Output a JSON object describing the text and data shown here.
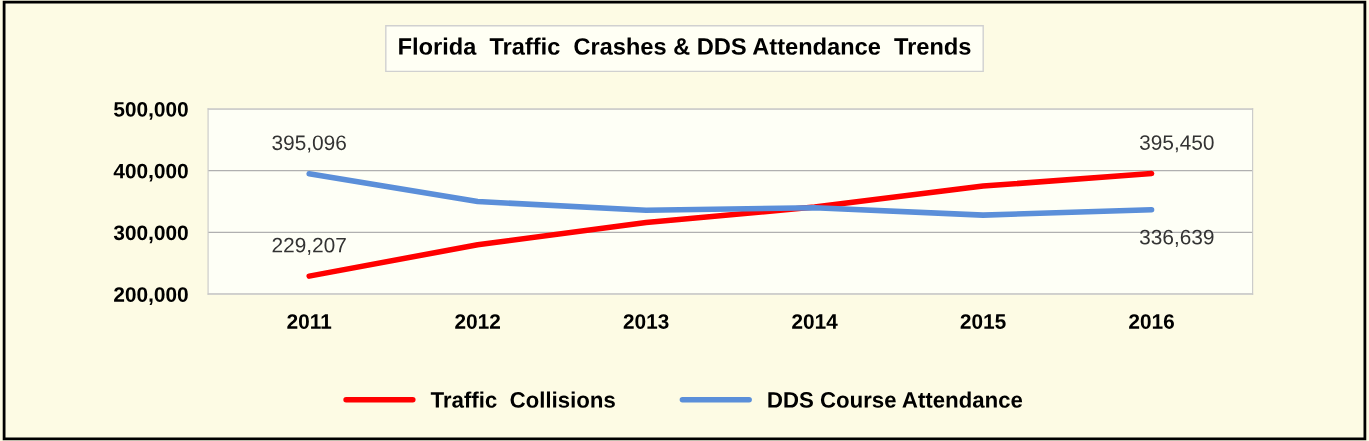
{
  "chart_data": {
    "type": "line",
    "title": "Florida  Traffic  Crashes & DDS Attendance  Trends",
    "categories": [
      "2011",
      "2012",
      "2013",
      "2014",
      "2015",
      "2016"
    ],
    "series": [
      {
        "name": "Traffic  Collisions",
        "color": "#ff0000",
        "values": [
          229207,
          280000,
          316000,
          341000,
          375000,
          395450
        ],
        "value_labels": [
          "229,207",
          null,
          null,
          null,
          null,
          "395,450"
        ]
      },
      {
        "name": "DDS Course Attendance",
        "color": "#5b8fd9",
        "values": [
          395096,
          350000,
          336000,
          340000,
          328000,
          336639
        ],
        "value_labels": [
          "395,096",
          null,
          null,
          null,
          null,
          "336,639"
        ]
      }
    ],
    "ylim": [
      200000,
      500000
    ],
    "yticks": [
      {
        "value": 200000,
        "label": "200,000"
      },
      {
        "value": 300000,
        "label": "300,000"
      },
      {
        "value": 400000,
        "label": "400,000"
      },
      {
        "value": 500000,
        "label": "500,000"
      }
    ],
    "grid": "y",
    "legend": "bottom",
    "marker": "none",
    "line_style": "solid"
  }
}
